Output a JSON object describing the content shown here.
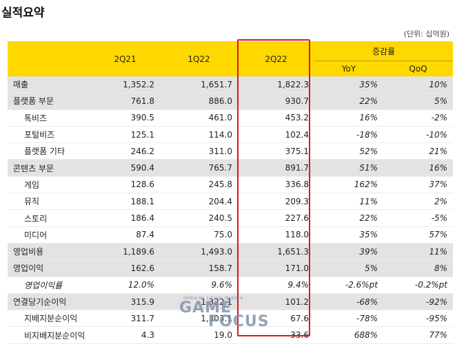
{
  "title": "실적요약",
  "unit_note": "(단위: 십억원)",
  "header": {
    "periods": [
      "2Q21",
      "1Q22",
      "2Q22"
    ],
    "growth_label": "증감률",
    "yoy": "YoY",
    "qoq": "QoQ"
  },
  "rows": [
    {
      "label": "매출",
      "v1": "1,352.2",
      "v2": "1,651.7",
      "v3": "1,822.3",
      "yoy": "35%",
      "qoq": "10%"
    },
    {
      "label": "플랫폼 부문",
      "v1": "761.8",
      "v2": "886.0",
      "v3": "930.7",
      "yoy": "22%",
      "qoq": "5%"
    },
    {
      "label": "톡비즈",
      "v1": "390.5",
      "v2": "461.0",
      "v3": "453.2",
      "yoy": "16%",
      "qoq": "-2%"
    },
    {
      "label": "포털비즈",
      "v1": "125.1",
      "v2": "114.0",
      "v3": "102.4",
      "yoy": "-18%",
      "qoq": "-10%"
    },
    {
      "label": "플랫폼 기타",
      "v1": "246.2",
      "v2": "311.0",
      "v3": "375.1",
      "yoy": "52%",
      "qoq": "21%"
    },
    {
      "label": "콘텐츠 부문",
      "v1": "590.4",
      "v2": "765.7",
      "v3": "891.7",
      "yoy": "51%",
      "qoq": "16%"
    },
    {
      "label": "게임",
      "v1": "128.6",
      "v2": "245.8",
      "v3": "336.8",
      "yoy": "162%",
      "qoq": "37%"
    },
    {
      "label": "뮤직",
      "v1": "188.1",
      "v2": "204.4",
      "v3": "209.3",
      "yoy": "11%",
      "qoq": "2%"
    },
    {
      "label": "스토리",
      "v1": "186.4",
      "v2": "240.5",
      "v3": "227.6",
      "yoy": "22%",
      "qoq": "-5%"
    },
    {
      "label": "미디어",
      "v1": "87.4",
      "v2": "75.0",
      "v3": "118.0",
      "yoy": "35%",
      "qoq": "57%"
    },
    {
      "label": "영업비용",
      "v1": "1,189.6",
      "v2": "1,493.0",
      "v3": "1,651.3",
      "yoy": "39%",
      "qoq": "11%"
    },
    {
      "label": "영업이익",
      "v1": "162.6",
      "v2": "158.7",
      "v3": "171.0",
      "yoy": "5%",
      "qoq": "8%"
    },
    {
      "label": "영업이익률",
      "v1": "12.0%",
      "v2": "9.6%",
      "v3": "9.4%",
      "yoy": "-2.6%pt",
      "qoq": "-0.2%pt"
    },
    {
      "label": "연결당기순이익",
      "v1": "315.9",
      "v2": "1,322.1",
      "v3": "101.2",
      "yoy": "-68%",
      "qoq": "-92%"
    },
    {
      "label": "지배지분순이익",
      "v1": "311.7",
      "v2": "1,303.1",
      "v3": "67.6",
      "yoy": "-78%",
      "qoq": "-95%"
    },
    {
      "label": "비지배지분순이익",
      "v1": "4.3",
      "v2": "19.0",
      "v3": "33.6",
      "yoy": "688%",
      "qoq": "77%"
    }
  ],
  "watermark": {
    "small": "Global No.1 Game Webzine",
    "line1": "GAME",
    "line2": "FOCUS"
  }
}
